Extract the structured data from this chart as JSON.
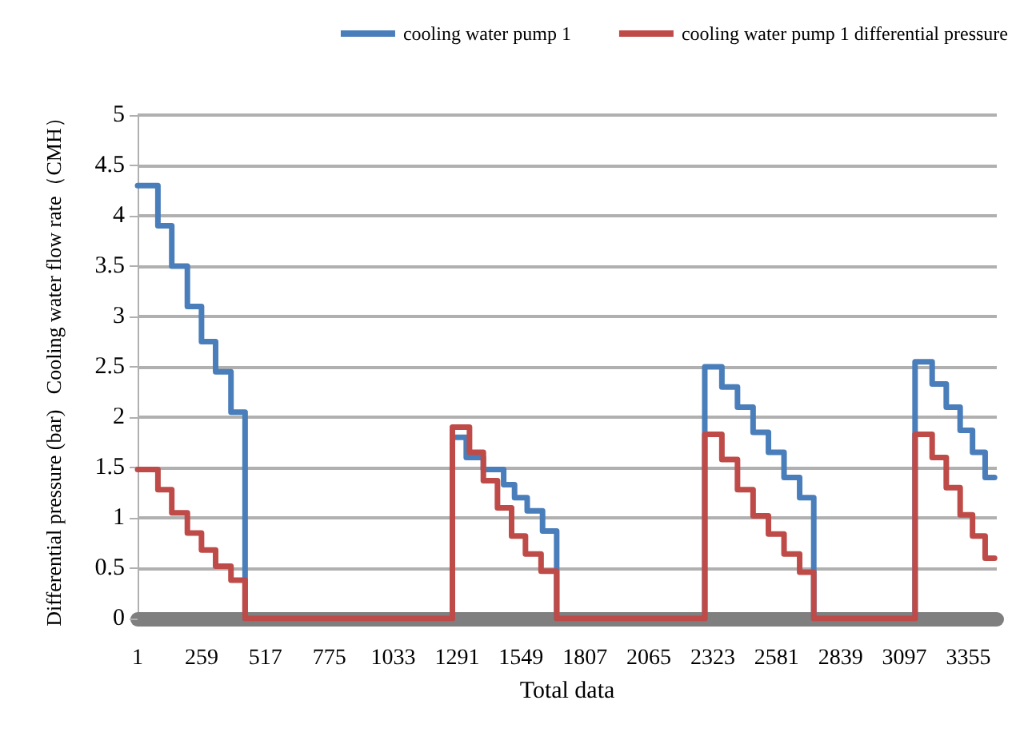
{
  "chart_data": {
    "type": "line",
    "xlabel": "Total data",
    "ylabel": "Differential pressure (bar)   Cooling water flow rate（CMH）",
    "xlim": [
      1,
      3470
    ],
    "xticks": [
      1,
      259,
      517,
      775,
      1033,
      1291,
      1549,
      1807,
      2065,
      2323,
      2581,
      2839,
      3097,
      3355
    ],
    "ylim": [
      0,
      5
    ],
    "yticks": [
      0,
      0.5,
      1,
      1.5,
      2,
      2.5,
      3,
      3.5,
      4,
      4.5,
      5
    ],
    "grid": "y",
    "legend": "top right",
    "marker": "none",
    "line_style": "solid",
    "series": [
      {
        "name": "cooling water pump 1",
        "color": "#4a7ebb",
        "x": [
          1,
          83,
          83,
          139,
          139,
          202,
          202,
          259,
          259,
          316,
          316,
          378,
          378,
          435,
          435,
          1272,
          1272,
          1328,
          1328,
          1397,
          1397,
          1479,
          1479,
          1523,
          1523,
          1574,
          1574,
          1636,
          1636,
          1693,
          1693,
          2291,
          2291,
          2360,
          2360,
          2423,
          2423,
          2486,
          2486,
          2548,
          2548,
          2611,
          2611,
          2674,
          2674,
          2731,
          2731,
          3140,
          3140,
          3209,
          3209,
          3266,
          3266,
          3322,
          3322,
          3372,
          3372,
          3423,
          3423,
          3461
        ],
        "values": [
          4.3,
          4.3,
          3.9,
          3.9,
          3.5,
          3.5,
          3.1,
          3.1,
          2.75,
          2.75,
          2.45,
          2.45,
          2.05,
          2.05,
          0,
          0,
          1.8,
          1.8,
          1.6,
          1.6,
          1.48,
          1.48,
          1.33,
          1.33,
          1.2,
          1.2,
          1.07,
          1.07,
          0.87,
          0.87,
          0,
          0,
          2.5,
          2.5,
          2.3,
          2.3,
          2.1,
          2.1,
          1.85,
          1.85,
          1.65,
          1.65,
          1.4,
          1.4,
          1.2,
          1.2,
          0,
          0,
          2.55,
          2.55,
          2.33,
          2.33,
          2.1,
          2.1,
          1.87,
          1.87,
          1.65,
          1.65,
          1.4,
          1.4
        ]
      },
      {
        "name": "cooling water pump 1 differential pressure",
        "color": "#be4b48",
        "x": [
          1,
          83,
          83,
          139,
          139,
          202,
          202,
          259,
          259,
          316,
          316,
          378,
          378,
          435,
          435,
          1272,
          1272,
          1341,
          1341,
          1397,
          1397,
          1454,
          1454,
          1511,
          1511,
          1567,
          1567,
          1630,
          1630,
          1693,
          1693,
          2291,
          2291,
          2360,
          2360,
          2423,
          2423,
          2486,
          2486,
          2548,
          2548,
          2611,
          2611,
          2674,
          2674,
          2731,
          2731,
          3140,
          3140,
          3209,
          3209,
          3266,
          3266,
          3322,
          3322,
          3372,
          3372,
          3423,
          3423,
          3461
        ],
        "values": [
          1.48,
          1.48,
          1.28,
          1.28,
          1.05,
          1.05,
          0.85,
          0.85,
          0.68,
          0.68,
          0.52,
          0.52,
          0.38,
          0.38,
          0,
          0,
          1.9,
          1.9,
          1.65,
          1.65,
          1.37,
          1.37,
          1.1,
          1.1,
          0.82,
          0.82,
          0.64,
          0.64,
          0.47,
          0.47,
          0,
          0,
          1.83,
          1.83,
          1.58,
          1.58,
          1.28,
          1.28,
          1.02,
          1.02,
          0.84,
          0.84,
          0.64,
          0.64,
          0.46,
          0.46,
          0,
          0,
          1.83,
          1.83,
          1.6,
          1.6,
          1.3,
          1.3,
          1.03,
          1.03,
          0.82,
          0.82,
          0.6,
          0.6
        ]
      }
    ]
  }
}
